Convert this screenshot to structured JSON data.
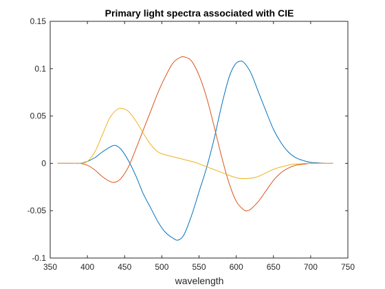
{
  "chart_data": {
    "type": "line",
    "title": "Primary light spectra associated with CIE",
    "xlabel": "wavelength",
    "ylabel": "",
    "xlim": [
      350,
      750
    ],
    "ylim": [
      -0.1,
      0.15
    ],
    "xticks": [
      350,
      400,
      450,
      500,
      550,
      600,
      650,
      700,
      750
    ],
    "yticks": [
      -0.1,
      -0.05,
      0,
      0.05,
      0.1,
      0.15
    ],
    "xtick_labels": [
      "350",
      "400",
      "450",
      "500",
      "550",
      "600",
      "650",
      "700",
      "750"
    ],
    "ytick_labels": [
      "-0.1",
      "-0.05",
      "0",
      "0.05",
      "0.1",
      "0.15"
    ],
    "grid": false,
    "series": [
      {
        "color": "#0072BD",
        "x": [
          360,
          380,
          390,
          400,
          410,
          420,
          430,
          437,
          445,
          455,
          465,
          475,
          485,
          495,
          505,
          515,
          522,
          530,
          540,
          550,
          560,
          570,
          580,
          590,
          598,
          606,
          612,
          620,
          630,
          640,
          650,
          660,
          670,
          680,
          690,
          700,
          710,
          720,
          730
        ],
        "y": [
          0,
          0,
          0,
          0.002,
          0.006,
          0.012,
          0.017,
          0.019,
          0.015,
          0.003,
          -0.013,
          -0.032,
          -0.047,
          -0.062,
          -0.073,
          -0.079,
          -0.081,
          -0.075,
          -0.055,
          -0.03,
          -0.005,
          0.025,
          0.06,
          0.09,
          0.104,
          0.108,
          0.105,
          0.095,
          0.075,
          0.055,
          0.036,
          0.022,
          0.012,
          0.006,
          0.003,
          0.001,
          0.0005,
          0,
          0
        ]
      },
      {
        "color": "#D95319",
        "x": [
          360,
          380,
          390,
          400,
          410,
          420,
          430,
          437,
          445,
          455,
          465,
          475,
          485,
          495,
          505,
          515,
          525,
          532,
          540,
          550,
          560,
          570,
          580,
          590,
          600,
          610,
          615,
          620,
          630,
          640,
          650,
          660,
          670,
          680,
          690,
          700,
          710,
          720,
          730
        ],
        "y": [
          0,
          0,
          0,
          -0.002,
          -0.007,
          -0.014,
          -0.019,
          -0.02,
          -0.016,
          -0.004,
          0.015,
          0.035,
          0.055,
          0.075,
          0.092,
          0.106,
          0.112,
          0.112,
          0.108,
          0.093,
          0.07,
          0.04,
          0.008,
          -0.02,
          -0.04,
          -0.049,
          -0.05,
          -0.048,
          -0.04,
          -0.029,
          -0.018,
          -0.01,
          -0.005,
          -0.002,
          -0.001,
          0,
          0,
          0,
          0
        ]
      },
      {
        "color": "#EDB120",
        "x": [
          360,
          380,
          390,
          400,
          410,
          420,
          430,
          440,
          447,
          455,
          465,
          475,
          485,
          495,
          505,
          515,
          525,
          535,
          545,
          555,
          565,
          575,
          585,
          595,
          605,
          615,
          625,
          635,
          645,
          655,
          665,
          675,
          685,
          695,
          705,
          715,
          730
        ],
        "y": [
          0,
          0,
          0,
          0.002,
          0.012,
          0.03,
          0.048,
          0.057,
          0.058,
          0.055,
          0.045,
          0.032,
          0.02,
          0.012,
          0.009,
          0.007,
          0.005,
          0.003,
          0.001,
          -0.002,
          -0.005,
          -0.008,
          -0.011,
          -0.014,
          -0.016,
          -0.016,
          -0.015,
          -0.012,
          -0.008,
          -0.005,
          -0.003,
          -0.001,
          -0.0005,
          0,
          0,
          0,
          0
        ]
      }
    ]
  }
}
